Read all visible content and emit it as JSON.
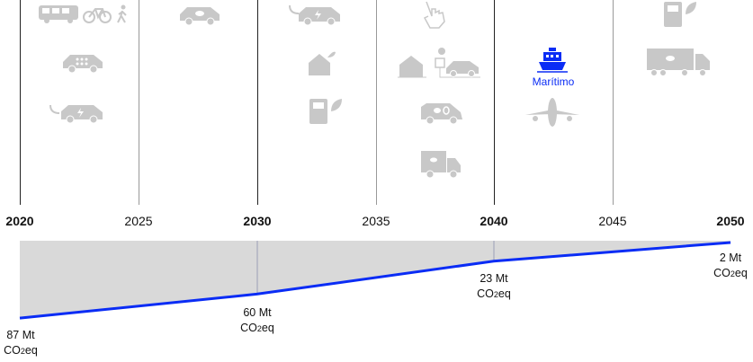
{
  "colors": {
    "accent": "#0a2cf5",
    "icon_gray": "#c8c8c8",
    "band": "#d9d9d9",
    "major_line": "#222222",
    "minor_line": "#aaaaaa"
  },
  "timeline": {
    "years": [
      "2020",
      "2025",
      "2030",
      "2035",
      "2040",
      "2045",
      "2050"
    ]
  },
  "columns": [
    {
      "icons": [
        "bus-icon",
        "bicycle-icon",
        "pedestrian-icon",
        "car-sharing-icon",
        "electric-car-plug-icon"
      ]
    },
    {
      "icons": [
        "eco-car-icon"
      ]
    },
    {
      "icons": [
        "electric-car-icon",
        "eco-house-icon",
        "biofuel-pump-icon"
      ]
    },
    {
      "icons": [
        "hand-pointer-icon",
        "solar-house-charging-icon",
        "zero-emission-van-icon",
        "eco-truck-icon"
      ]
    },
    {
      "icons": [
        "ship-icon",
        "airplane-icon"
      ],
      "highlight_label": "Marítimo"
    },
    {
      "icons": [
        "biofuel-pump-icon",
        "eco-truck-trailer-icon"
      ]
    }
  ],
  "chart_data": {
    "type": "line",
    "x": [
      2020,
      2030,
      2040,
      2050
    ],
    "values": [
      87,
      60,
      23,
      2
    ],
    "unit": "Mt",
    "labels": [
      {
        "value": "87 Mt",
        "unit_pre": "CO",
        "unit_sub": "2",
        "unit_post": "eq"
      },
      {
        "value": "60 Mt",
        "unit_pre": "CO",
        "unit_sub": "2",
        "unit_post": "eq"
      },
      {
        "value": "23 Mt",
        "unit_pre": "CO",
        "unit_sub": "2",
        "unit_post": "eq"
      },
      {
        "value": "2 Mt",
        "unit_pre": "CO",
        "unit_sub": "2",
        "unit_post": "eq"
      }
    ],
    "xlim": [
      2020,
      2050
    ],
    "ylim": [
      0,
      87
    ]
  }
}
